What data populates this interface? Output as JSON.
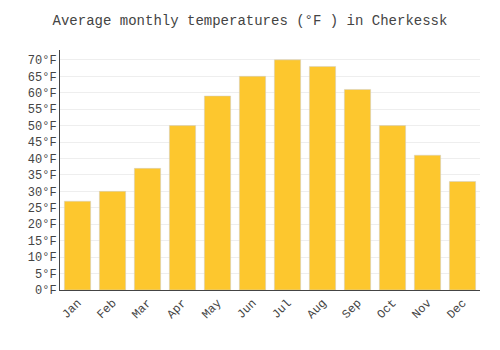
{
  "chart_data": {
    "type": "bar",
    "title": "Average monthly temperatures (°F ) in Cherkessk",
    "categories": [
      "Jan",
      "Feb",
      "Mar",
      "Apr",
      "May",
      "Jun",
      "Jul",
      "Aug",
      "Sep",
      "Oct",
      "Nov",
      "Dec"
    ],
    "values": [
      27,
      30,
      37,
      50,
      59,
      65,
      70,
      68,
      61,
      50,
      41,
      33
    ],
    "color": "#FDC72E",
    "ylim": [
      0,
      73
    ],
    "yticks": [
      {
        "value": 0,
        "label": "0°F"
      },
      {
        "value": 5,
        "label": "5°F"
      },
      {
        "value": 10,
        "label": "10°F"
      },
      {
        "value": 15,
        "label": "15°F"
      },
      {
        "value": 20,
        "label": "20°F"
      },
      {
        "value": 25,
        "label": "25°F"
      },
      {
        "value": 30,
        "label": "30°F"
      },
      {
        "value": 35,
        "label": "35°F"
      },
      {
        "value": 40,
        "label": "40°F"
      },
      {
        "value": 45,
        "label": "45°F"
      },
      {
        "value": 50,
        "label": "50°F"
      },
      {
        "value": 55,
        "label": "55°F"
      },
      {
        "value": 60,
        "label": "60°F"
      },
      {
        "value": 65,
        "label": "65°F"
      },
      {
        "value": 70,
        "label": "70°F"
      }
    ],
    "grid": true
  }
}
